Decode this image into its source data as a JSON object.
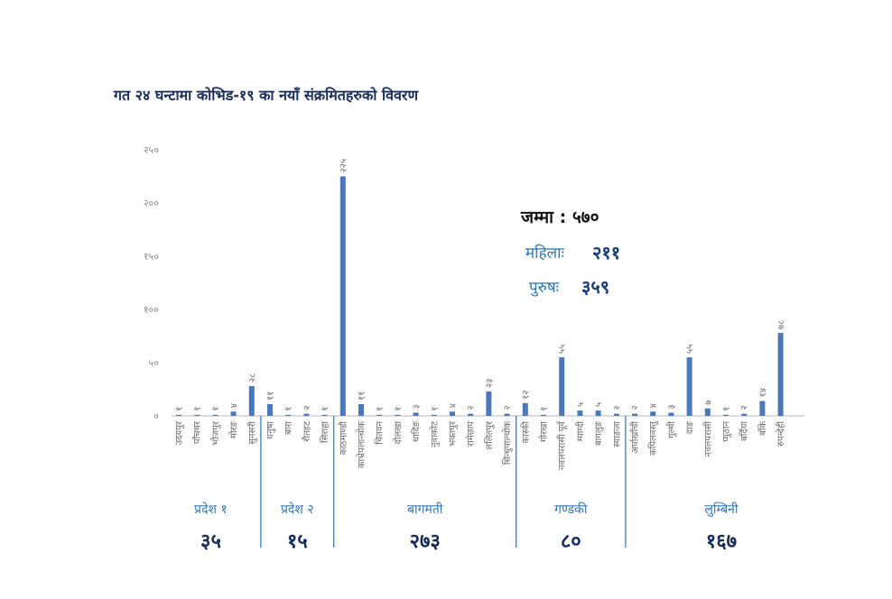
{
  "chart_data": {
    "type": "bar",
    "title": "गत २४ घन्टामा कोभिड-१९ का नयाँ संक्रमितहरुको विवरण",
    "ylim": [
      0,
      250
    ],
    "yticks": [
      "०",
      "५०",
      "१००",
      "१५०",
      "२००",
      "२५०"
    ],
    "grid": false,
    "bar_color": "#4a78b8",
    "categories": [
      "उदयपुर",
      "पाँचथर",
      "भोजपुर",
      "मोरङ",
      "सुनसरी",
      "धनुषा",
      "बारा",
      "रौतहट",
      "सिराहा",
      "काठमाण्डौ",
      "काभ्रेपलान्चोक",
      "चितवन",
      "दोलखा",
      "धादिङ",
      "नुवाकोट",
      "भक्तपुर",
      "रामेछाप",
      "ललितपुर",
      "सिन्धुपाल्चोक",
      "कास्की",
      "गोरखा",
      "नवलपरासी पूर्व",
      "म्याग्दी",
      "बागलुङ",
      "स्याङजा",
      "अर्घाखाँची",
      "कपिलवस्तु",
      "गुल्मी",
      "दाङ",
      "नवलपरासी",
      "प्युठान",
      "बर्दिया",
      "बाँके",
      "रुपन्देही"
    ],
    "values": [
      1,
      1,
      1,
      4,
      28,
      11,
      1,
      2,
      1,
      225,
      11,
      1,
      1,
      3,
      1,
      4,
      2,
      23,
      2,
      12,
      1,
      55,
      5,
      5,
      2,
      2,
      4,
      3,
      55,
      7,
      1,
      2,
      14,
      78
    ],
    "value_labels": [
      "१",
      "१",
      "१",
      "४",
      "२८",
      "११",
      "१",
      "२",
      "१",
      "२२५",
      "११",
      "१",
      "१",
      "३",
      "१",
      "४",
      "२",
      "२३",
      "२",
      "१२",
      "१",
      "५५",
      "५",
      "५",
      "२",
      "२",
      "४",
      "३",
      "५५",
      "७",
      "१",
      "२",
      "१४",
      "७८"
    ],
    "regions": [
      {
        "name": "प्रदेश १",
        "total": "३५",
        "count": 5
      },
      {
        "name": "प्रदेश २",
        "total": "१५",
        "count": 4
      },
      {
        "name": "बागमती",
        "total": "२७३",
        "count": 10
      },
      {
        "name": "गण्डकी",
        "total": "८०",
        "count": 6
      },
      {
        "name": "लुम्बिनी",
        "total": "१६७",
        "count": 9
      }
    ],
    "summary": {
      "total_label": "जम्मा : ५७०",
      "female_label": "महिलाः",
      "female_value": "२११",
      "male_label": "पुरुषः",
      "male_value": "३५९"
    }
  }
}
